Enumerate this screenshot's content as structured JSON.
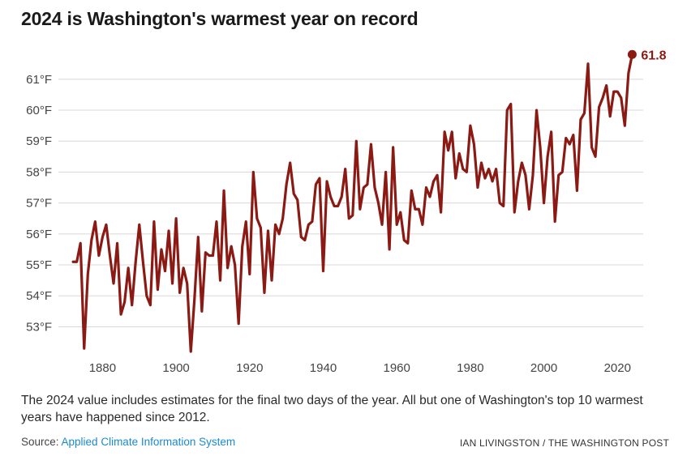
{
  "title": "2024 is Washington's warmest year on record",
  "note": "The 2024 value includes estimates for the final two days of the year. All but one of Washington's top 10 warmest years have happened since 2012.",
  "source": {
    "prefix": "Source: ",
    "link_text": "Applied Climate Information System"
  },
  "credit": "IAN LIVINGSTON / THE WASHINGTON POST",
  "colors": {
    "line": "#8b1a14",
    "grid": "#d8d8d8",
    "text": "#444444",
    "link": "#1a8ad0"
  },
  "chart_data": {
    "type": "line",
    "title": "2024 is Washington's warmest year on record",
    "xlabel": "",
    "ylabel": "",
    "xlim": [
      1868,
      2027
    ],
    "ylim": [
      52.2,
      62.2
    ],
    "x_ticks": [
      1880,
      1900,
      1920,
      1940,
      1960,
      1980,
      2000,
      2020
    ],
    "x_tick_labels": [
      "1880",
      "1900",
      "1920",
      "1940",
      "1960",
      "1980",
      "2000",
      "2020"
    ],
    "y_ticks": [
      53,
      54,
      55,
      56,
      57,
      58,
      59,
      60,
      61
    ],
    "y_tick_labels": [
      "53°F",
      "54°F",
      "55°F",
      "56°F",
      "57°F",
      "58°F",
      "59°F",
      "60°F",
      "61°F"
    ],
    "grid": "horizontal",
    "end_label": "61.8",
    "series": [
      {
        "x": [
          1872,
          1873,
          1874,
          1875,
          1876,
          1877,
          1878,
          1879,
          1880,
          1881,
          1882,
          1883,
          1884,
          1885,
          1886,
          1887,
          1888,
          1889,
          1890,
          1891,
          1892,
          1893,
          1894,
          1895,
          1896,
          1897,
          1898,
          1899,
          1900,
          1901,
          1902,
          1903,
          1904,
          1905,
          1906,
          1907,
          1908,
          1909,
          1910,
          1911,
          1912,
          1913,
          1914,
          1915,
          1916,
          1917,
          1918,
          1919,
          1920,
          1921,
          1922,
          1923,
          1924,
          1925,
          1926,
          1927,
          1928,
          1929,
          1930,
          1931,
          1932,
          1933,
          1934,
          1935,
          1936,
          1937,
          1938,
          1939,
          1940,
          1941,
          1942,
          1943,
          1944,
          1945,
          1946,
          1947,
          1948,
          1949,
          1950,
          1951,
          1952,
          1953,
          1954,
          1955,
          1956,
          1957,
          1958,
          1959,
          1960,
          1961,
          1962,
          1963,
          1964,
          1965,
          1966,
          1967,
          1968,
          1969,
          1970,
          1971,
          1972,
          1973,
          1974,
          1975,
          1976,
          1977,
          1978,
          1979,
          1980,
          1981,
          1982,
          1983,
          1984,
          1985,
          1986,
          1987,
          1988,
          1989,
          1990,
          1991,
          1992,
          1993,
          1994,
          1995,
          1996,
          1997,
          1998,
          1999,
          2000,
          2001,
          2002,
          2003,
          2004,
          2005,
          2006,
          2007,
          2008,
          2009,
          2010,
          2011,
          2012,
          2013,
          2014,
          2015,
          2016,
          2017,
          2018,
          2019,
          2020,
          2021,
          2022,
          2023,
          2024
        ],
        "values": [
          55.1,
          55.1,
          55.7,
          52.3,
          54.7,
          55.8,
          56.4,
          55.3,
          55.9,
          56.3,
          55.3,
          54.4,
          55.7,
          53.4,
          53.8,
          54.9,
          53.7,
          55.1,
          56.3,
          55.1,
          54.0,
          53.7,
          56.4,
          54.2,
          55.5,
          54.8,
          56.1,
          54.4,
          56.5,
          54.1,
          54.9,
          54.4,
          52.2,
          53.9,
          55.9,
          53.5,
          55.4,
          55.3,
          55.3,
          56.4,
          54.5,
          57.4,
          54.9,
          55.6,
          55.0,
          53.1,
          55.6,
          56.4,
          54.7,
          58.0,
          56.5,
          56.2,
          54.1,
          56.1,
          54.5,
          56.3,
          56.0,
          56.5,
          57.6,
          58.3,
          57.3,
          57.1,
          55.9,
          55.8,
          56.3,
          56.4,
          57.6,
          57.8,
          54.8,
          57.7,
          57.2,
          56.9,
          56.9,
          57.2,
          58.1,
          56.5,
          56.6,
          59.0,
          56.8,
          57.5,
          57.6,
          58.9,
          57.5,
          57.0,
          56.3,
          58.0,
          55.5,
          58.8,
          56.3,
          56.7,
          55.8,
          55.7,
          57.4,
          56.8,
          56.8,
          56.3,
          57.5,
          57.2,
          57.7,
          57.9,
          56.7,
          59.3,
          58.7,
          59.3,
          57.8,
          58.6,
          58.1,
          58.0,
          59.5,
          58.9,
          57.5,
          58.3,
          57.8,
          58.1,
          57.7,
          58.1,
          57.0,
          56.9,
          60.0,
          60.2,
          56.7,
          57.7,
          58.3,
          57.9,
          56.8,
          57.9,
          60.0,
          58.8,
          57.0,
          58.5,
          59.3,
          56.4,
          57.9,
          58.0,
          59.1,
          58.9,
          59.2,
          57.4,
          59.7,
          59.9,
          61.5,
          58.8,
          58.5,
          60.1,
          60.4,
          60.8,
          59.8,
          60.6,
          60.6,
          60.4,
          59.5,
          61.2,
          61.8
        ]
      }
    ]
  }
}
